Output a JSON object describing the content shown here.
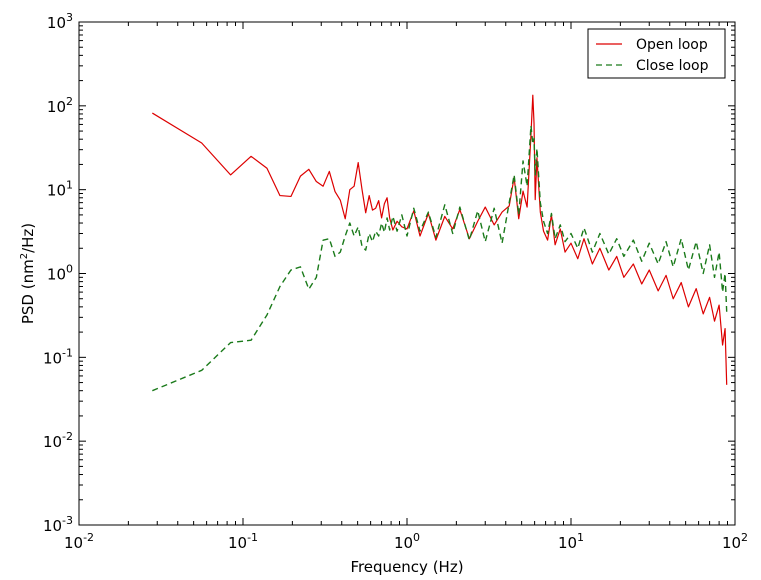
{
  "chart_data": {
    "type": "line",
    "title": "",
    "xlabel": "Frequency (Hz)",
    "ylabel_parts": {
      "prefix": "PSD (nm",
      "superscript": "2",
      "suffix": "/Hz)"
    },
    "xscale": "log",
    "yscale": "log",
    "xlim": [
      0.01,
      100
    ],
    "ylim": [
      0.001,
      1000
    ],
    "grid": false,
    "legend_position": "top-right",
    "x_ticks": [
      {
        "base": "10",
        "exp": "-2",
        "value": 0.01
      },
      {
        "base": "10",
        "exp": "-1",
        "value": 0.1
      },
      {
        "base": "10",
        "exp": "0",
        "value": 1
      },
      {
        "base": "10",
        "exp": "1",
        "value": 10
      },
      {
        "base": "10",
        "exp": "2",
        "value": 100
      }
    ],
    "y_ticks": [
      {
        "base": "10",
        "exp": "-3",
        "value": 0.001
      },
      {
        "base": "10",
        "exp": "-2",
        "value": 0.01
      },
      {
        "base": "10",
        "exp": "-1",
        "value": 0.1
      },
      {
        "base": "10",
        "exp": "0",
        "value": 1
      },
      {
        "base": "10",
        "exp": "1",
        "value": 10
      },
      {
        "base": "10",
        "exp": "2",
        "value": 100
      },
      {
        "base": "10",
        "exp": "3",
        "value": 1000
      }
    ],
    "series": [
      {
        "name": "Open loop",
        "color": "#dd0000",
        "dash": "solid",
        "x": [
          0.028,
          0.056,
          0.084,
          0.112,
          0.14,
          0.168,
          0.196,
          0.224,
          0.252,
          0.28,
          0.308,
          0.336,
          0.364,
          0.392,
          0.42,
          0.448,
          0.476,
          0.504,
          0.532,
          0.56,
          0.588,
          0.616,
          0.644,
          0.672,
          0.7,
          0.728,
          0.756,
          0.784,
          0.82,
          0.87,
          0.93,
          1.0,
          1.1,
          1.2,
          1.35,
          1.5,
          1.7,
          1.9,
          2.1,
          2.4,
          2.7,
          3.0,
          3.4,
          3.8,
          4.2,
          4.5,
          4.8,
          5.1,
          5.4,
          5.7,
          5.85,
          5.95,
          6.05,
          6.2,
          6.5,
          6.8,
          7.2,
          7.6,
          8.0,
          8.6,
          9.2,
          10.0,
          11.0,
          12.0,
          13.5,
          15.0,
          17.0,
          19.0,
          21.0,
          24.0,
          27.0,
          30.0,
          34.0,
          38.0,
          42.0,
          47.0,
          52.0,
          58.0,
          64.0,
          70.0,
          75.0,
          80.0,
          84.0,
          87.0,
          89.0
        ],
        "values": [
          82,
          36,
          15,
          25,
          18,
          8.5,
          8.3,
          14.5,
          17.5,
          12.5,
          11,
          16.5,
          9.5,
          7.5,
          4.5,
          10,
          11,
          21,
          10,
          5.3,
          8.5,
          5.7,
          6,
          7.4,
          4.6,
          6.8,
          8,
          4.6,
          3.3,
          4.2,
          3.6,
          3.4,
          5.6,
          2.8,
          5.2,
          2.5,
          4.8,
          3.4,
          5.8,
          2.6,
          4.2,
          6.2,
          3.8,
          5.4,
          6.4,
          14,
          4.5,
          9.6,
          6.2,
          45,
          134,
          62,
          7.6,
          24,
          5.4,
          3.2,
          2.5,
          5,
          2.2,
          3.4,
          1.8,
          2.3,
          1.5,
          2.6,
          1.3,
          2.0,
          1.1,
          1.6,
          0.9,
          1.3,
          0.75,
          1.1,
          0.62,
          0.95,
          0.5,
          0.78,
          0.4,
          0.66,
          0.33,
          0.52,
          0.27,
          0.42,
          0.14,
          0.22,
          0.047
        ]
      },
      {
        "name": "Close loop",
        "color": "#1a7a1a",
        "dash": "dashed",
        "x": [
          0.028,
          0.056,
          0.084,
          0.112,
          0.14,
          0.168,
          0.196,
          0.224,
          0.252,
          0.28,
          0.308,
          0.336,
          0.364,
          0.392,
          0.42,
          0.448,
          0.476,
          0.504,
          0.532,
          0.56,
          0.588,
          0.616,
          0.644,
          0.672,
          0.7,
          0.728,
          0.756,
          0.784,
          0.82,
          0.87,
          0.93,
          1.0,
          1.1,
          1.2,
          1.35,
          1.5,
          1.7,
          1.9,
          2.1,
          2.4,
          2.7,
          3.0,
          3.4,
          3.8,
          4.2,
          4.5,
          4.8,
          5.1,
          5.4,
          5.7,
          5.85,
          5.95,
          6.05,
          6.2,
          6.5,
          6.8,
          7.2,
          7.6,
          8.0,
          8.6,
          9.2,
          10.0,
          11.0,
          12.0,
          13.5,
          15.0,
          17.0,
          19.0,
          21.0,
          24.0,
          27.0,
          30.0,
          34.0,
          38.0,
          42.0,
          47.0,
          52.0,
          58.0,
          64.0,
          70.0,
          75.0,
          80.0,
          84.0,
          87.0,
          89.0
        ],
        "values": [
          0.04,
          0.07,
          0.15,
          0.16,
          0.32,
          0.7,
          1.1,
          1.2,
          0.65,
          0.9,
          2.5,
          2.6,
          1.6,
          1.8,
          2.8,
          4.0,
          2.8,
          3.6,
          2.1,
          1.9,
          3.0,
          2.4,
          3.2,
          2.8,
          4.0,
          3.1,
          4.6,
          3.3,
          4.8,
          3.2,
          5.0,
          2.8,
          6.0,
          3.2,
          5.4,
          2.7,
          6.6,
          3.0,
          6.2,
          2.5,
          5.6,
          2.4,
          6.0,
          2.3,
          7.0,
          15,
          5.0,
          22,
          11,
          58,
          35,
          41,
          15,
          31,
          7,
          4.2,
          3.0,
          5.2,
          2.6,
          3.8,
          2.4,
          3.0,
          2.0,
          3.5,
          1.8,
          3.0,
          1.7,
          2.6,
          1.6,
          2.5,
          1.4,
          2.3,
          1.3,
          2.4,
          1.2,
          2.6,
          1.1,
          2.4,
          1.0,
          2.2,
          0.9,
          1.8,
          0.6,
          1.0,
          0.35
        ]
      }
    ]
  }
}
